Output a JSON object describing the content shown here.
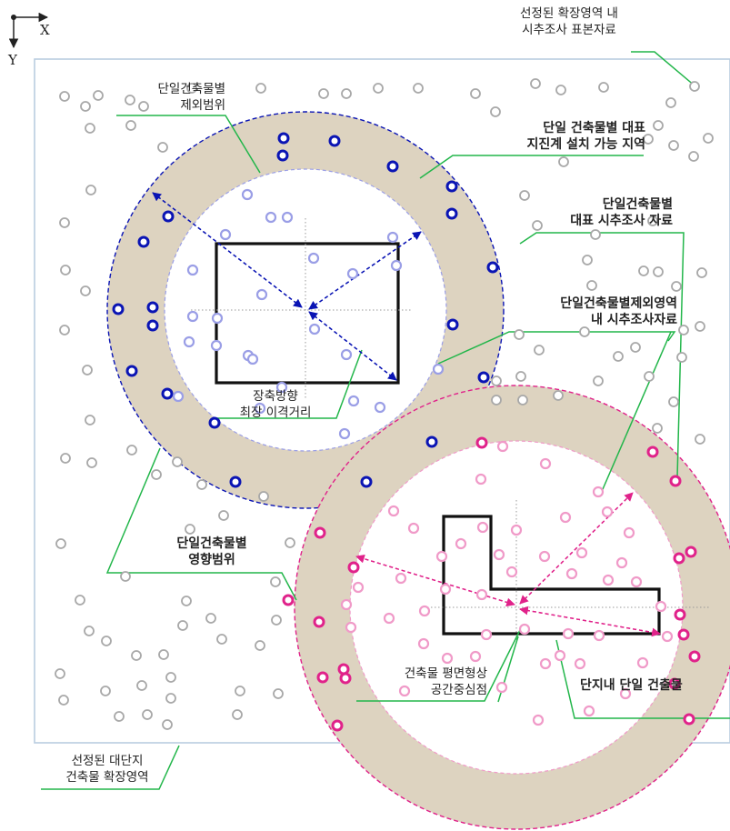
{
  "axes": {
    "x_label": "X",
    "y_label": "Y"
  },
  "labels": {
    "sample_data": [
      "선정된 확장영역 내",
      "시추조사 표본자료"
    ],
    "exclusion_range": [
      "단일건축물별",
      "제외범위"
    ],
    "representative_area": [
      "단일 건축물별 대표",
      "지진계 설치 가능 지역"
    ],
    "representative_data": [
      "단일건축물별",
      "대표 시추조사 자료"
    ],
    "excluded_zone_data": [
      "단일건축물별제외영역",
      "내 시추조사자료"
    ],
    "longest_distance": [
      "장축방향",
      "최장 이격거리"
    ],
    "influence_range": [
      "단일건축물별",
      "영향범위"
    ],
    "centroid": [
      "건축물 평면형상",
      "공간중심점"
    ],
    "single_building": "단지내 단일 건출물",
    "expansion_area": [
      "선정된 대단지",
      "건축물 확장영역"
    ]
  },
  "colors": {
    "blue": "#0a14b4",
    "blue_light": "#9a9ee6",
    "magenta": "#e0228a",
    "magenta_light": "#f09ac8",
    "gray": "#a8a8a8",
    "annulus": "#ddd3c0",
    "leader": "#22b64a",
    "frame": "#b9cde0"
  }
}
